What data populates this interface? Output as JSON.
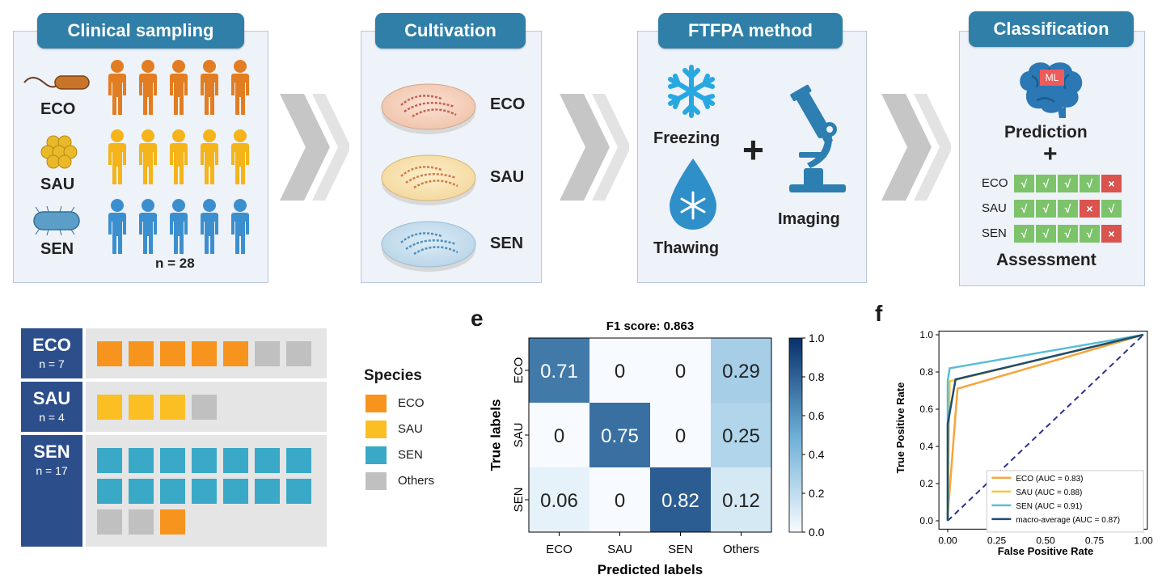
{
  "panels": {
    "clinical": {
      "title": "Clinical sampling",
      "species": [
        "ECO",
        "SAU",
        "SEN"
      ],
      "n_label": "n = 28"
    },
    "cultivation": {
      "title": "Cultivation",
      "species": [
        "ECO",
        "SAU",
        "SEN"
      ]
    },
    "ftfpa": {
      "title": "FTFPA method",
      "freezing": "Freezing",
      "thawing": "Thawing",
      "plus": "+",
      "imaging": "Imaging"
    },
    "classification": {
      "title": "Classification",
      "ml_badge": "ML",
      "prediction": "Prediction",
      "plus": "+",
      "assessment": "Assessment",
      "rows": [
        {
          "label": "ECO",
          "marks": [
            "√",
            "√",
            "√",
            "√",
            "×"
          ]
        },
        {
          "label": "SAU",
          "marks": [
            "√",
            "√",
            "√",
            "×",
            "√"
          ]
        },
        {
          "label": "SEN",
          "marks": [
            "√",
            "√",
            "√",
            "√",
            "×"
          ]
        }
      ]
    }
  },
  "colors": {
    "eco": "#f7941d",
    "sau": "#fbbf24",
    "sen": "#3aa9c8",
    "others": "#c0c0c0",
    "person_eco": "#e27d22",
    "person_sau": "#f4b41a",
    "person_sen": "#3c8fcf",
    "check_green": "#7cc36a",
    "cross_red": "#d9534f",
    "navy": "#2c4f8c"
  },
  "waffle": {
    "rows": [
      {
        "name": "ECO",
        "n": "n = 7",
        "cells": [
          "eco",
          "eco",
          "eco",
          "eco",
          "eco",
          "others",
          "others"
        ]
      },
      {
        "name": "SAU",
        "n": "n = 4",
        "cells": [
          "sau",
          "sau",
          "sau",
          "others"
        ]
      },
      {
        "name": "SEN",
        "n": "n = 17",
        "cells": [
          "sen",
          "sen",
          "sen",
          "sen",
          "sen",
          "sen",
          "sen",
          "sen",
          "sen",
          "sen",
          "sen",
          "sen",
          "sen",
          "sen",
          "others",
          "others",
          "eco"
        ]
      }
    ],
    "legend": {
      "title": "Species",
      "items": [
        {
          "key": "eco",
          "label": "ECO"
        },
        {
          "key": "sau",
          "label": "SAU"
        },
        {
          "key": "sen",
          "label": "SEN"
        },
        {
          "key": "others",
          "label": "Others"
        }
      ]
    }
  },
  "chart_data": [
    {
      "type": "heatmap",
      "panel_letter": "e",
      "title": "F1 score: 0.863",
      "xlabel": "Predicted labels",
      "ylabel": "True labels",
      "x_categories": [
        "ECO",
        "SAU",
        "SEN",
        "Others"
      ],
      "y_categories": [
        "ECO",
        "SAU",
        "SEN"
      ],
      "values": [
        [
          0.71,
          0,
          0,
          0.29
        ],
        [
          0,
          0.75,
          0,
          0.25
        ],
        [
          0.06,
          0,
          0.82,
          0.12
        ]
      ],
      "value_labels": [
        [
          "0.71",
          "0",
          "0",
          "0.29"
        ],
        [
          "0",
          "0.75",
          "0",
          "0.25"
        ],
        [
          "0.06",
          "0",
          "0.82",
          "0.12"
        ]
      ],
      "colorbar": {
        "range": [
          0.0,
          1.0
        ],
        "ticks": [
          "0.0",
          "0.2",
          "0.4",
          "0.6",
          "0.8",
          "1.0"
        ]
      }
    },
    {
      "type": "line",
      "panel_letter": "f",
      "title": "",
      "xlabel": "False Positive Rate",
      "ylabel": "True Positive Rate",
      "xlim": [
        0,
        1
      ],
      "ylim": [
        0,
        1
      ],
      "x_ticks": [
        "0.00",
        "0.25",
        "0.50",
        "0.75",
        "1.00"
      ],
      "y_ticks": [
        "0.0",
        "0.2",
        "0.4",
        "0.6",
        "0.8",
        "1.0"
      ],
      "series": [
        {
          "name": "ECO (AUC = 0.83)",
          "color": "#f7a43a",
          "x": [
            0,
            0,
            0.05,
            1
          ],
          "y": [
            0,
            0.03,
            0.71,
            1
          ]
        },
        {
          "name": "SAU (AUC = 0.88)",
          "color": "#f5c542",
          "x": [
            0,
            0,
            0.01,
            1
          ],
          "y": [
            0,
            0.03,
            0.75,
            1
          ]
        },
        {
          "name": "SEN (AUC = 0.91)",
          "color": "#5bbcd8",
          "x": [
            0,
            0,
            0.01,
            1
          ],
          "y": [
            0,
            0.75,
            0.82,
            1
          ]
        },
        {
          "name": "macro-average (AUC = 0.87)",
          "color": "#1f4e6e",
          "x": [
            0,
            0,
            0.04,
            1
          ],
          "y": [
            0,
            0.52,
            0.76,
            1
          ]
        }
      ],
      "diagonal": {
        "color": "#2e3192",
        "style": "dashed"
      },
      "legend_position": "lower-right"
    }
  ]
}
